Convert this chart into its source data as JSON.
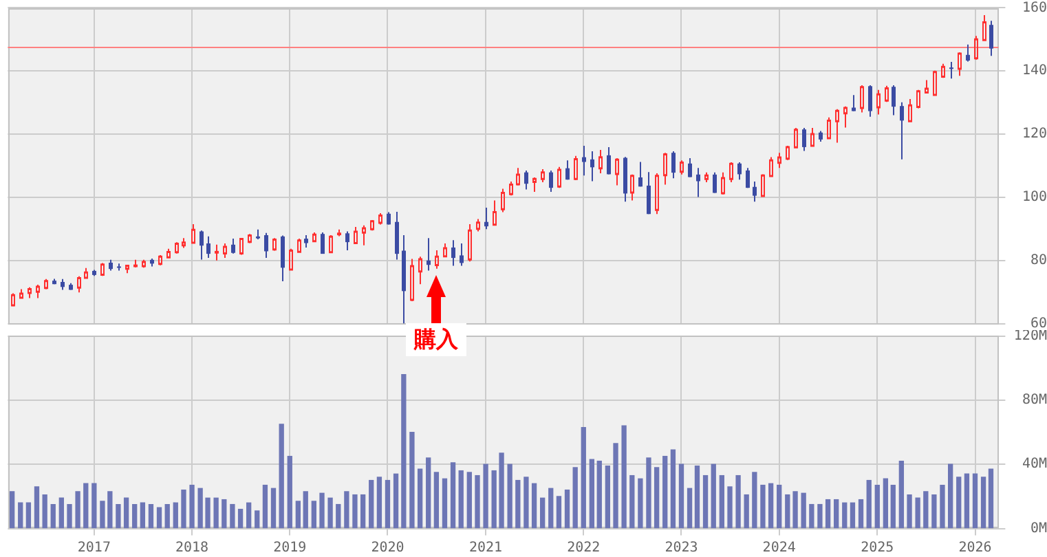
{
  "chart_data": [
    {
      "type": "candlestick",
      "x": [
        "2016-03",
        "2016-04",
        "2016-05",
        "2016-06",
        "2016-07",
        "2016-08",
        "2016-09",
        "2016-10",
        "2016-11",
        "2016-12",
        "2017-01",
        "2017-02",
        "2017-03",
        "2017-04",
        "2017-05",
        "2017-06",
        "2017-07",
        "2017-08",
        "2017-09",
        "2017-10",
        "2017-11",
        "2017-12",
        "2018-01",
        "2018-02",
        "2018-03",
        "2018-04",
        "2018-05",
        "2018-06",
        "2018-07",
        "2018-08",
        "2018-09",
        "2018-10",
        "2018-11",
        "2018-12",
        "2019-01",
        "2019-02",
        "2019-03",
        "2019-04",
        "2019-05",
        "2019-06",
        "2019-07",
        "2019-08",
        "2019-09",
        "2019-10",
        "2019-11",
        "2019-12",
        "2020-01",
        "2020-02",
        "2020-03",
        "2020-04",
        "2020-05",
        "2020-06",
        "2020-07",
        "2020-08",
        "2020-09",
        "2020-10",
        "2020-11",
        "2020-12",
        "2021-01",
        "2021-02",
        "2021-03",
        "2021-04",
        "2021-05",
        "2021-06",
        "2021-07",
        "2021-08",
        "2021-09",
        "2021-10",
        "2021-11",
        "2021-12",
        "2022-01",
        "2022-02",
        "2022-03",
        "2022-04",
        "2022-05",
        "2022-06",
        "2022-07",
        "2022-08",
        "2022-09",
        "2022-10",
        "2022-11",
        "2022-12",
        "2023-01",
        "2023-02",
        "2023-03",
        "2023-04",
        "2023-05",
        "2023-06",
        "2023-07",
        "2023-08",
        "2023-09",
        "2023-10",
        "2023-11",
        "2023-12",
        "2024-01",
        "2024-02",
        "2024-03",
        "2024-04",
        "2024-05",
        "2024-06",
        "2024-07",
        "2024-08",
        "2024-09",
        "2024-10",
        "2024-11",
        "2024-12",
        "2025-01",
        "2025-02",
        "2025-03",
        "2025-04",
        "2025-05",
        "2025-06",
        "2025-07",
        "2025-08",
        "2025-09",
        "2025-10",
        "2025-11",
        "2025-12",
        "2026-01",
        "2026-02",
        "2026-03"
      ],
      "ohlc": [
        [
          65.7,
          69.6,
          65.5,
          69.1
        ],
        [
          68.1,
          70.9,
          68.0,
          69.6
        ],
        [
          69.6,
          71.5,
          68.1,
          71.0
        ],
        [
          70.0,
          72.3,
          68.1,
          71.8
        ],
        [
          71.2,
          74.1,
          70.9,
          73.6
        ],
        [
          73.6,
          74.2,
          72.5,
          72.5
        ],
        [
          73.2,
          74.1,
          70.7,
          71.6
        ],
        [
          72.3,
          72.8,
          70.7,
          70.7
        ],
        [
          71.3,
          75.0,
          69.9,
          74.5
        ],
        [
          74.4,
          77.6,
          74.4,
          76.3
        ],
        [
          76.7,
          77.0,
          75.1,
          75.4
        ],
        [
          75.4,
          79.2,
          75.1,
          78.8
        ],
        [
          79.3,
          80.2,
          76.8,
          77.3
        ],
        [
          78.1,
          79.0,
          76.8,
          77.7
        ],
        [
          77.3,
          78.6,
          76.0,
          78.4
        ],
        [
          78.1,
          80.2,
          77.8,
          78.5
        ],
        [
          78.1,
          80.2,
          77.7,
          79.6
        ],
        [
          80.2,
          80.6,
          78.1,
          79.0
        ],
        [
          78.8,
          81.7,
          78.5,
          81.3
        ],
        [
          80.9,
          83.7,
          80.9,
          82.8
        ],
        [
          82.5,
          85.8,
          82.2,
          85.4
        ],
        [
          84.7,
          87.1,
          84.0,
          85.8
        ],
        [
          85.5,
          91.5,
          85.5,
          89.8
        ],
        [
          89.2,
          89.5,
          80.3,
          84.7
        ],
        [
          85.4,
          87.6,
          80.8,
          82.1
        ],
        [
          82.4,
          85.0,
          80.0,
          82.8
        ],
        [
          82.1,
          85.4,
          80.8,
          84.4
        ],
        [
          85.0,
          86.9,
          82.2,
          82.4
        ],
        [
          82.1,
          87.1,
          81.8,
          86.9
        ],
        [
          85.8,
          88.4,
          85.5,
          88.0
        ],
        [
          87.6,
          89.8,
          86.7,
          87.0
        ],
        [
          88.0,
          88.7,
          80.8,
          82.9
        ],
        [
          83.4,
          87.1,
          83.1,
          86.7
        ],
        [
          87.6,
          87.9,
          73.4,
          77.7
        ],
        [
          77.0,
          83.7,
          77.0,
          83.2
        ],
        [
          82.6,
          86.9,
          82.6,
          86.4
        ],
        [
          86.9,
          88.0,
          84.1,
          85.5
        ],
        [
          86.0,
          88.9,
          86.0,
          88.3
        ],
        [
          88.4,
          88.9,
          82.1,
          82.1
        ],
        [
          82.5,
          88.0,
          82.5,
          87.6
        ],
        [
          88.2,
          89.8,
          87.7,
          88.6
        ],
        [
          88.6,
          89.2,
          83.2,
          85.8
        ],
        [
          85.4,
          90.6,
          85.4,
          89.2
        ],
        [
          88.7,
          91.1,
          84.8,
          90.3
        ],
        [
          89.8,
          92.8,
          89.5,
          92.5
        ],
        [
          91.8,
          95.0,
          91.4,
          94.3
        ],
        [
          94.8,
          95.3,
          91.4,
          91.4
        ],
        [
          92.2,
          95.4,
          80.3,
          82.1
        ],
        [
          83.1,
          88.0,
          60.1,
          70.3
        ],
        [
          67.4,
          80.5,
          67.1,
          78.3
        ],
        [
          76.4,
          81.2,
          72.5,
          80.5
        ],
        [
          80.0,
          87.1,
          76.8,
          78.6
        ],
        [
          78.4,
          83.2,
          77.4,
          81.3
        ],
        [
          81.2,
          85.4,
          81.2,
          84.0
        ],
        [
          84.1,
          86.4,
          78.3,
          80.8
        ],
        [
          81.6,
          85.4,
          78.3,
          79.2
        ],
        [
          80.2,
          91.5,
          79.7,
          89.6
        ],
        [
          89.9,
          93.1,
          89.2,
          92.1
        ],
        [
          92.2,
          96.7,
          89.9,
          90.8
        ],
        [
          91.2,
          99.0,
          91.2,
          95.4
        ],
        [
          96.1,
          102.7,
          95.3,
          101.5
        ],
        [
          100.9,
          105.0,
          100.6,
          104.1
        ],
        [
          104.0,
          109.3,
          103.8,
          107.3
        ],
        [
          107.9,
          108.5,
          102.5,
          104.3
        ],
        [
          104.8,
          106.3,
          101.7,
          105.9
        ],
        [
          105.7,
          108.9,
          104.8,
          108.0
        ],
        [
          107.9,
          108.5,
          101.7,
          103.0
        ],
        [
          103.3,
          109.6,
          103.0,
          108.8
        ],
        [
          109.2,
          111.7,
          105.6,
          105.6
        ],
        [
          105.7,
          113.1,
          105.4,
          112.2
        ],
        [
          112.7,
          116.3,
          106.9,
          111.2
        ],
        [
          112.0,
          114.6,
          105.1,
          109.5
        ],
        [
          109.1,
          115.0,
          107.6,
          112.8
        ],
        [
          113.3,
          115.9,
          107.3,
          107.3
        ],
        [
          107.3,
          112.4,
          103.8,
          112.0
        ],
        [
          112.5,
          112.8,
          98.6,
          101.2
        ],
        [
          101.4,
          107.2,
          99.0,
          106.9
        ],
        [
          106.3,
          111.2,
          103.4,
          103.4
        ],
        [
          103.7,
          108.0,
          94.7,
          94.7
        ],
        [
          95.9,
          107.6,
          94.7,
          106.9
        ],
        [
          106.9,
          114.1,
          104.0,
          113.7
        ],
        [
          114.1,
          114.6,
          106.0,
          107.8
        ],
        [
          108.0,
          111.7,
          107.2,
          111.1
        ],
        [
          110.7,
          112.4,
          106.4,
          106.4
        ],
        [
          107.2,
          109.3,
          100.1,
          105.1
        ],
        [
          105.7,
          107.9,
          104.8,
          107.0
        ],
        [
          107.2,
          107.9,
          101.4,
          101.4
        ],
        [
          101.2,
          107.9,
          100.9,
          106.2
        ],
        [
          105.7,
          111.1,
          104.8,
          110.7
        ],
        [
          110.7,
          111.1,
          105.6,
          107.3
        ],
        [
          108.5,
          109.3,
          103.0,
          103.0
        ],
        [
          103.3,
          105.0,
          98.6,
          100.5
        ],
        [
          100.3,
          107.3,
          100.3,
          107.0
        ],
        [
          106.6,
          112.7,
          106.6,
          111.8
        ],
        [
          110.8,
          114.1,
          109.3,
          112.7
        ],
        [
          112.1,
          116.3,
          111.8,
          116.0
        ],
        [
          115.7,
          122.0,
          115.7,
          121.5
        ],
        [
          121.5,
          122.0,
          114.7,
          115.9
        ],
        [
          116.2,
          122.0,
          116.2,
          120.1
        ],
        [
          120.5,
          121.0,
          117.6,
          118.3
        ],
        [
          118.6,
          125.3,
          118.6,
          124.4
        ],
        [
          124.0,
          127.9,
          117.3,
          127.5
        ],
        [
          126.5,
          128.8,
          122.1,
          128.4
        ],
        [
          128.4,
          132.4,
          127.3,
          127.3
        ],
        [
          128.2,
          135.5,
          126.9,
          135.0
        ],
        [
          135.2,
          135.5,
          125.5,
          127.3
        ],
        [
          128.4,
          134.0,
          126.2,
          132.7
        ],
        [
          130.5,
          135.3,
          130.2,
          134.6
        ],
        [
          135.0,
          135.5,
          126.0,
          128.7
        ],
        [
          128.9,
          130.1,
          112.0,
          124.3
        ],
        [
          124.0,
          131.1,
          124.0,
          129.2
        ],
        [
          128.5,
          134.0,
          128.2,
          133.7
        ],
        [
          133.1,
          137.1,
          133.1,
          134.5
        ],
        [
          132.3,
          140.1,
          132.3,
          139.8
        ],
        [
          138.1,
          142.3,
          137.8,
          141.4
        ],
        [
          141.1,
          142.9,
          137.6,
          140.7
        ],
        [
          140.6,
          145.9,
          138.5,
          145.6
        ],
        [
          145.1,
          148.4,
          143.0,
          143.3
        ],
        [
          143.9,
          151.1,
          143.6,
          150.1
        ],
        [
          149.7,
          157.7,
          149.7,
          155.5
        ],
        [
          154.6,
          155.9,
          144.8,
          147.1
        ]
      ],
      "colors": [
        "#ff3030",
        "#ff3030",
        "#ff3030",
        "#ff3030",
        "#ff3030",
        "#3b4ba3",
        "#3b4ba3",
        "#3b4ba3",
        "#ff3030",
        "#ff3030",
        "#3b4ba3",
        "#ff3030",
        "#3b4ba3",
        "#3b4ba3",
        "#ff3030",
        "#ff3030",
        "#ff3030",
        "#3b4ba3",
        "#ff3030",
        "#ff3030",
        "#ff3030",
        "#ff3030",
        "#ff3030",
        "#3b4ba3",
        "#3b4ba3",
        "#ff3030",
        "#ff3030",
        "#3b4ba3",
        "#ff3030",
        "#ff3030",
        "#3b4ba3",
        "#3b4ba3",
        "#ff3030",
        "#3b4ba3",
        "#ff3030",
        "#ff3030",
        "#3b4ba3",
        "#ff3030",
        "#3b4ba3",
        "#ff3030",
        "#ff3030",
        "#3b4ba3",
        "#ff3030",
        "#ff3030",
        "#ff3030",
        "#ff3030",
        "#3b4ba3",
        "#3b4ba3",
        "#3b4ba3",
        "#ff3030",
        "#ff3030",
        "#3b4ba3",
        "#ff3030",
        "#ff3030",
        "#3b4ba3",
        "#3b4ba3",
        "#ff3030",
        "#ff3030",
        "#3b4ba3",
        "#ff3030",
        "#ff3030",
        "#ff3030",
        "#ff3030",
        "#3b4ba3",
        "#ff3030",
        "#ff3030",
        "#3b4ba3",
        "#ff3030",
        "#3b4ba3",
        "#ff3030",
        "#3b4ba3",
        "#3b4ba3",
        "#ff3030",
        "#3b4ba3",
        "#ff3030",
        "#3b4ba3",
        "#ff3030",
        "#3b4ba3",
        "#3b4ba3",
        "#ff3030",
        "#ff3030",
        "#3b4ba3",
        "#ff3030",
        "#3b4ba3",
        "#3b4ba3",
        "#ff3030",
        "#3b4ba3",
        "#ff3030",
        "#ff3030",
        "#3b4ba3",
        "#3b4ba3",
        "#3b4ba3",
        "#ff3030",
        "#ff3030",
        "#ff3030",
        "#ff3030",
        "#ff3030",
        "#3b4ba3",
        "#ff3030",
        "#3b4ba3",
        "#ff3030",
        "#ff3030",
        "#ff3030",
        "#3b4ba3",
        "#ff3030",
        "#3b4ba3",
        "#ff3030",
        "#ff3030",
        "#3b4ba3",
        "#3b4ba3",
        "#ff3030",
        "#ff3030",
        "#ff3030",
        "#ff3030",
        "#ff3030",
        "#3b4ba3",
        "#ff3030",
        "#3b4ba3",
        "#ff3030",
        "#ff3030",
        "#3b4ba3"
      ],
      "xlim": [
        "2016-02-14",
        "2026-03-29"
      ],
      "xticks": [
        "2017",
        "2018",
        "2019",
        "2020",
        "2021",
        "2022",
        "2023",
        "2024",
        "2025",
        "2026"
      ],
      "ylim": [
        60,
        160
      ],
      "yticks": [
        60,
        80,
        100,
        120,
        140,
        160
      ],
      "grid": true,
      "tick_labels": "y",
      "ref_lines": [
        {
          "axis": "y",
          "value": 147.5,
          "color": "#ff8080"
        }
      ],
      "annotations": [
        {
          "text": "購入",
          "x": "2020-07",
          "y": 77.4
        }
      ]
    },
    {
      "type": "bar",
      "x": [
        "2016-03",
        "2016-04",
        "2016-05",
        "2016-06",
        "2016-07",
        "2016-08",
        "2016-09",
        "2016-10",
        "2016-11",
        "2016-12",
        "2017-01",
        "2017-02",
        "2017-03",
        "2017-04",
        "2017-05",
        "2017-06",
        "2017-07",
        "2017-08",
        "2017-09",
        "2017-10",
        "2017-11",
        "2017-12",
        "2018-01",
        "2018-02",
        "2018-03",
        "2018-04",
        "2018-05",
        "2018-06",
        "2018-07",
        "2018-08",
        "2018-09",
        "2018-10",
        "2018-11",
        "2018-12",
        "2019-01",
        "2019-02",
        "2019-03",
        "2019-04",
        "2019-05",
        "2019-06",
        "2019-07",
        "2019-08",
        "2019-09",
        "2019-10",
        "2019-11",
        "2019-12",
        "2020-01",
        "2020-02",
        "2020-03",
        "2020-04",
        "2020-05",
        "2020-06",
        "2020-07",
        "2020-08",
        "2020-09",
        "2020-10",
        "2020-11",
        "2020-12",
        "2021-01",
        "2021-02",
        "2021-03",
        "2021-04",
        "2021-05",
        "2021-06",
        "2021-07",
        "2021-08",
        "2021-09",
        "2021-10",
        "2021-11",
        "2021-12",
        "2022-01",
        "2022-02",
        "2022-03",
        "2022-04",
        "2022-05",
        "2022-06",
        "2022-07",
        "2022-08",
        "2022-09",
        "2022-10",
        "2022-11",
        "2022-12",
        "2023-01",
        "2023-02",
        "2023-03",
        "2023-04",
        "2023-05",
        "2023-06",
        "2023-07",
        "2023-08",
        "2023-09",
        "2023-10",
        "2023-11",
        "2023-12",
        "2024-01",
        "2024-02",
        "2024-03",
        "2024-04",
        "2024-05",
        "2024-06",
        "2024-07",
        "2024-08",
        "2024-09",
        "2024-10",
        "2024-11",
        "2024-12",
        "2025-01",
        "2025-02",
        "2025-03",
        "2025-04",
        "2025-05",
        "2025-06",
        "2025-07",
        "2025-08",
        "2025-09",
        "2025-10",
        "2025-11",
        "2025-12",
        "2026-01",
        "2026-02",
        "2026-03"
      ],
      "values": [
        23,
        16,
        16,
        26,
        21,
        15,
        19,
        15,
        23,
        28,
        28,
        17,
        23,
        15,
        19,
        15,
        16,
        15,
        13,
        15,
        16,
        24,
        27,
        25,
        19,
        19,
        18,
        15,
        12,
        16,
        11,
        27,
        25,
        65,
        45,
        17,
        23,
        17,
        22,
        19,
        15,
        23,
        21,
        21,
        30,
        32,
        30,
        34,
        96,
        60,
        37,
        44,
        35,
        31,
        41,
        36,
        35,
        33,
        40,
        36,
        47,
        40,
        30,
        32,
        28,
        19,
        25,
        20,
        24,
        38,
        63,
        43,
        42,
        39,
        53,
        64,
        33,
        31,
        44,
        38,
        45,
        49,
        40,
        25,
        39,
        33,
        40,
        33,
        26,
        33,
        21,
        35,
        27,
        28,
        27,
        21,
        23,
        22,
        15,
        15,
        18,
        18,
        16,
        16,
        18,
        30,
        27,
        31,
        27,
        42,
        21,
        19,
        23,
        21,
        27,
        40,
        32,
        34,
        34,
        32,
        37
      ],
      "color": "#6d76b5",
      "xlim": [
        "2016-02-14",
        "2026-03-29"
      ],
      "xticks": [
        "2017",
        "2018",
        "2019",
        "2020",
        "2021",
        "2022",
        "2023",
        "2024",
        "2025",
        "2026"
      ],
      "ylim": [
        0,
        120
      ],
      "yticks": [
        {
          "value": 0,
          "label": "0M"
        },
        {
          "value": 40,
          "label": "40M"
        },
        {
          "value": 80,
          "label": "80M"
        },
        {
          "value": 120,
          "label": "120M"
        }
      ],
      "grid": true
    }
  ]
}
